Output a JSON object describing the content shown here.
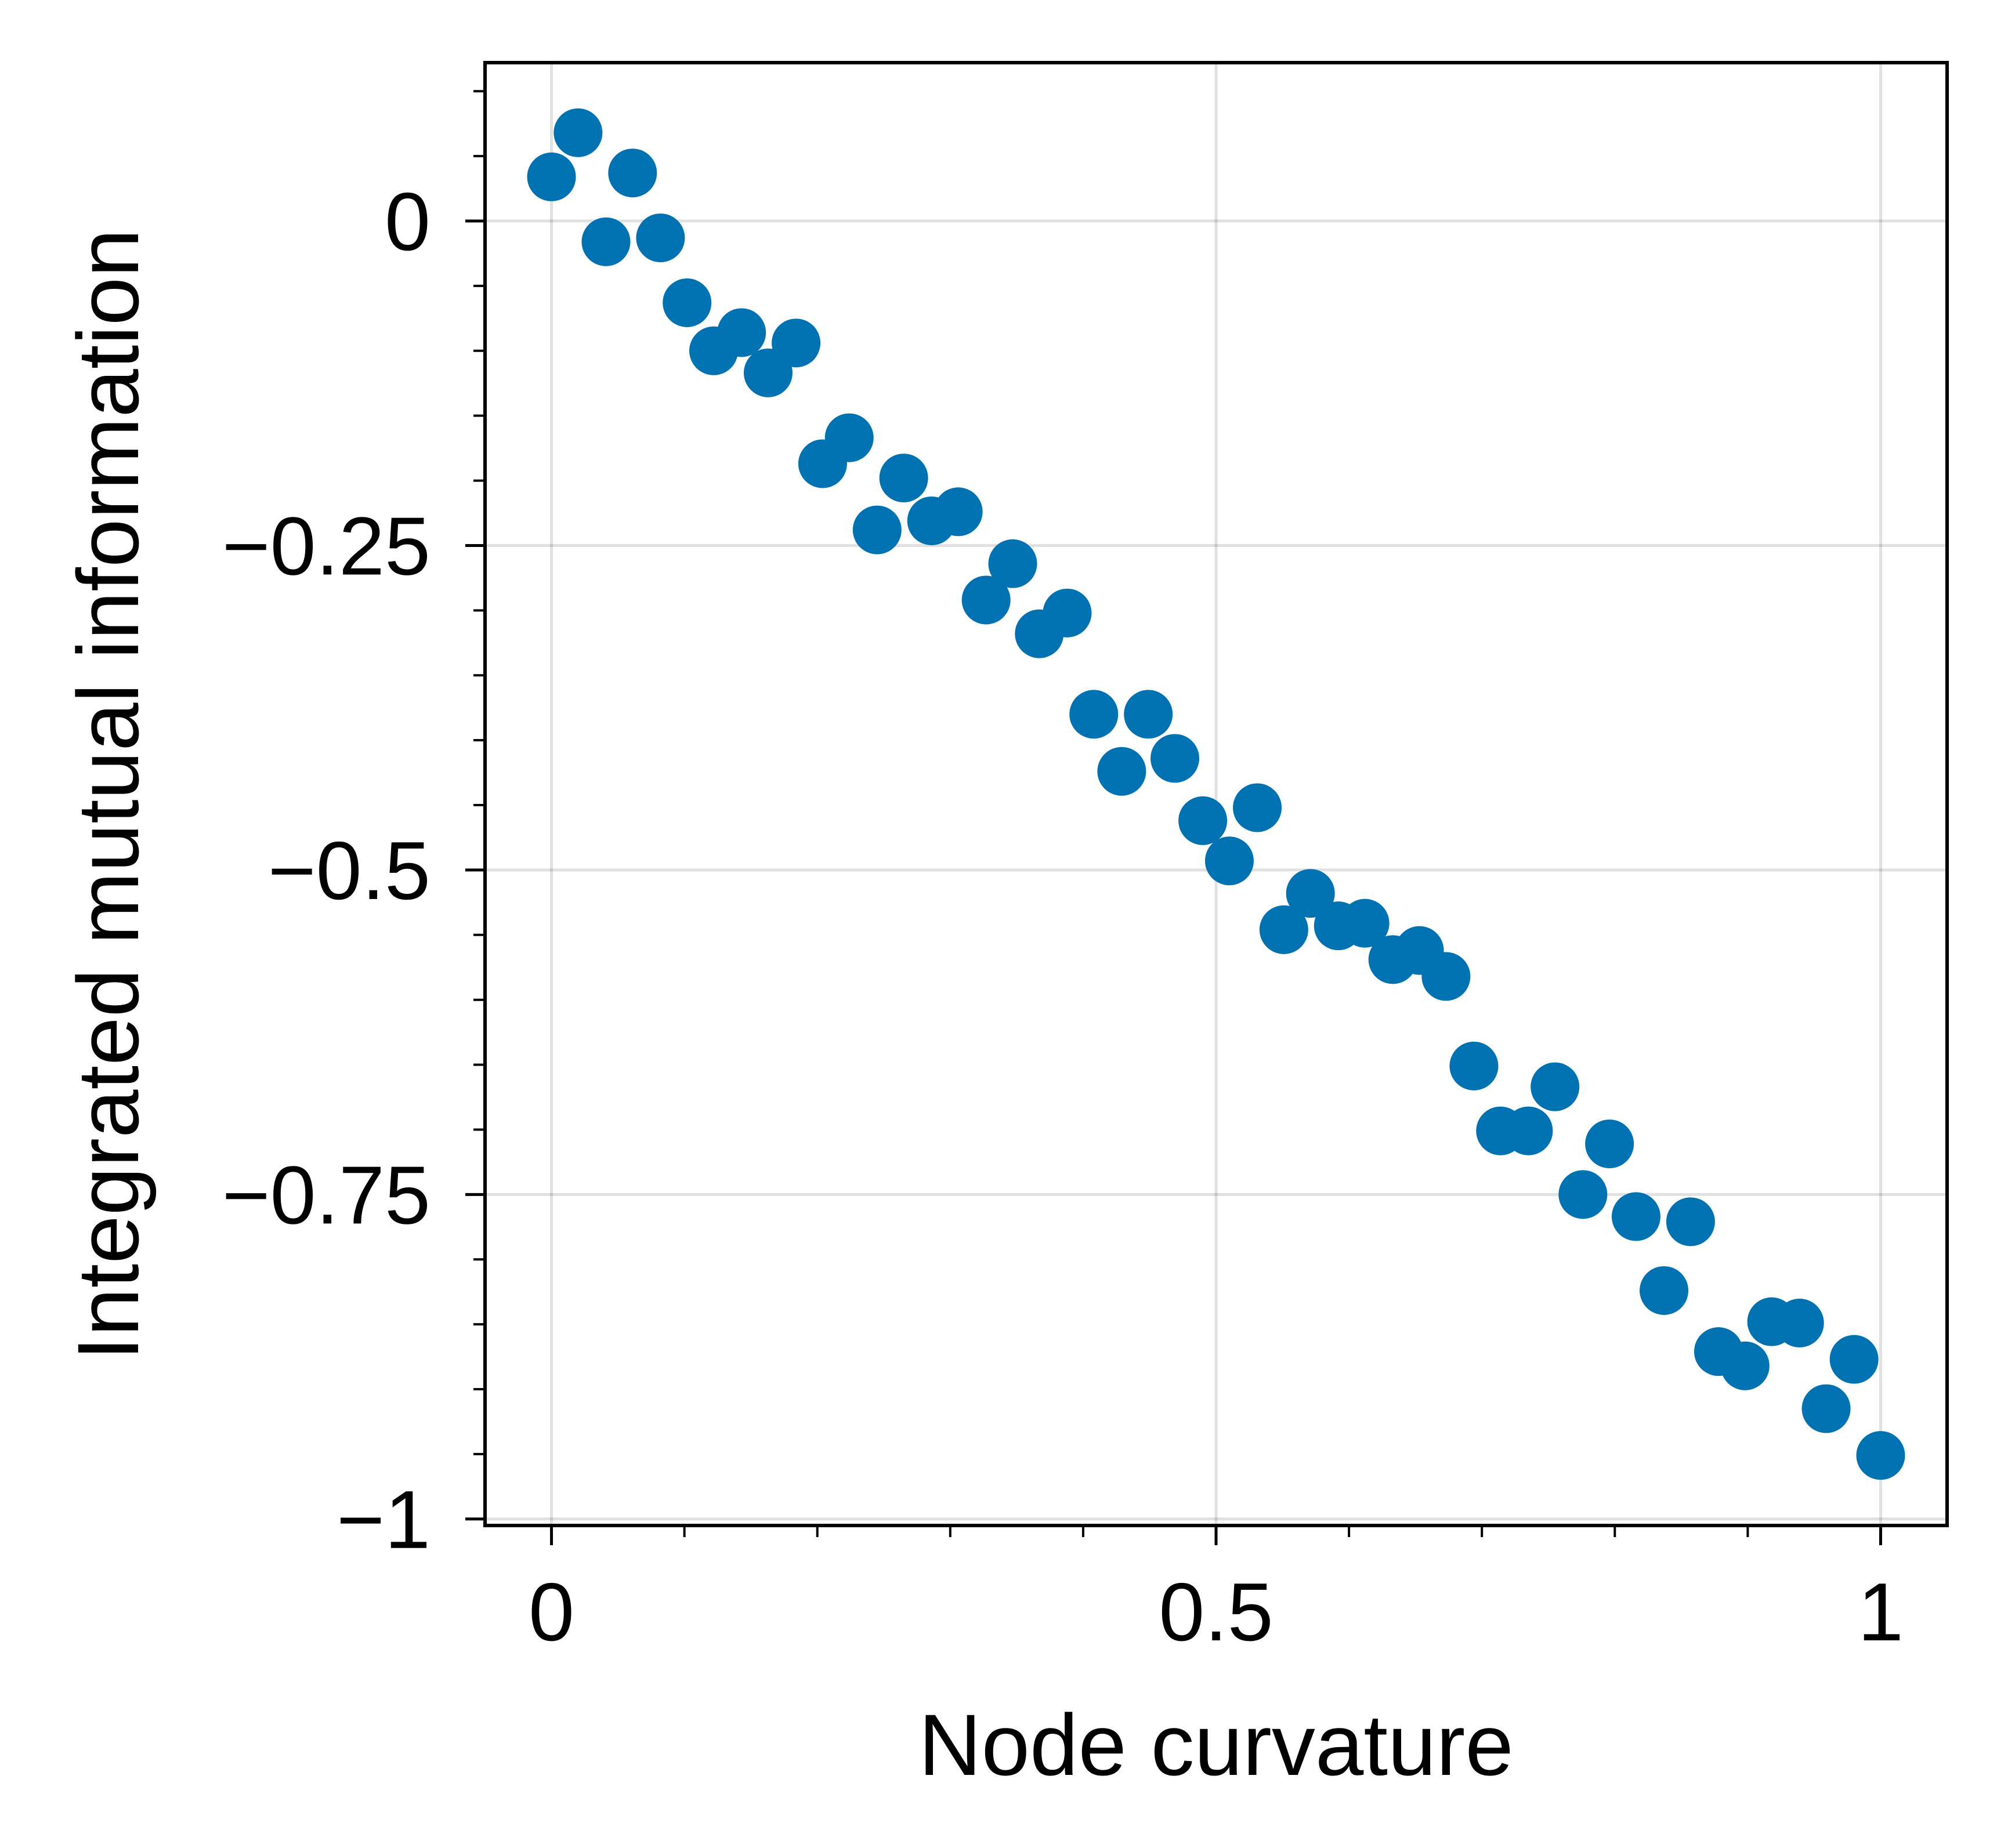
{
  "chart_data": {
    "type": "scatter",
    "title": "",
    "xlabel": "Node curvature",
    "ylabel": "Integrated mutual information",
    "xlim": [
      -0.05,
      1.05
    ],
    "ylim": [
      -1.005,
      0.122
    ],
    "x_ticks": [
      {
        "value": 0,
        "label": "0"
      },
      {
        "value": 0.5,
        "label": "0.5"
      },
      {
        "value": 1,
        "label": "1"
      }
    ],
    "y_ticks": [
      {
        "value": 0,
        "label": "0"
      },
      {
        "value": -0.25,
        "label": "−0.25"
      },
      {
        "value": -0.5,
        "label": "−0.5"
      },
      {
        "value": -0.75,
        "label": "−0.75"
      },
      {
        "value": -1,
        "label": "−1"
      }
    ],
    "x_minor_ticks": [
      0.1,
      0.2,
      0.3,
      0.4,
      0.6,
      0.7,
      0.8,
      0.9
    ],
    "y_minor_ticks": [
      0.1,
      0.05,
      -0.05,
      -0.1,
      -0.15,
      -0.2,
      -0.3,
      -0.35,
      -0.4,
      -0.45,
      -0.55,
      -0.6,
      -0.65,
      -0.7,
      -0.8,
      -0.85,
      -0.9,
      -0.95
    ],
    "grid": true,
    "marker_color": "#0072b2",
    "series": [
      {
        "x": [
          0.0,
          0.02,
          0.041,
          0.061,
          0.082,
          0.102,
          0.122,
          0.143,
          0.163,
          0.184,
          0.204,
          0.224,
          0.245,
          0.265,
          0.286,
          0.306,
          0.327,
          0.347,
          0.367,
          0.388,
          0.408,
          0.429,
          0.449,
          0.469,
          0.49,
          0.51,
          0.531,
          0.551,
          0.571,
          0.592,
          0.612,
          0.633,
          0.653,
          0.673,
          0.694,
          0.714,
          0.735,
          0.755,
          0.776,
          0.796,
          0.816,
          0.837,
          0.857,
          0.878,
          0.898,
          0.918,
          0.939,
          0.959,
          0.98,
          1.0
        ],
        "y": [
          0.034,
          0.068,
          -0.016,
          0.037,
          -0.013,
          -0.063,
          -0.1,
          -0.086,
          -0.117,
          -0.094,
          -0.187,
          -0.167,
          -0.238,
          -0.198,
          -0.231,
          -0.224,
          -0.292,
          -0.264,
          -0.318,
          -0.302,
          -0.38,
          -0.424,
          -0.38,
          -0.414,
          -0.462,
          -0.493,
          -0.452,
          -0.546,
          -0.518,
          -0.543,
          -0.541,
          -0.569,
          -0.562,
          -0.582,
          -0.651,
          -0.701,
          -0.701,
          -0.667,
          -0.75,
          -0.711,
          -0.767,
          -0.824,
          -0.771,
          -0.871,
          -0.882,
          -0.848,
          -0.849,
          -0.915,
          -0.877,
          -0.951
        ]
      }
    ]
  }
}
